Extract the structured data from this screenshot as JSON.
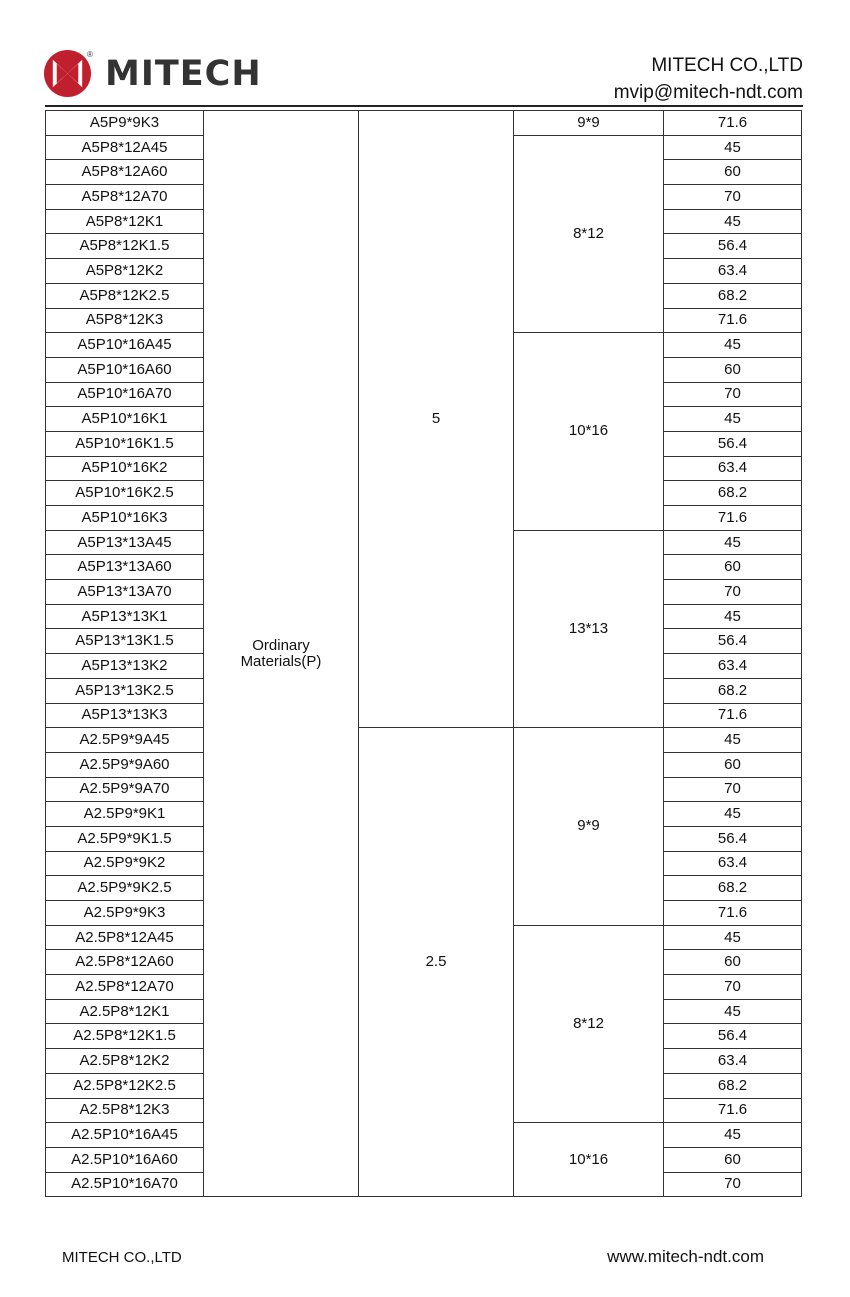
{
  "header": {
    "brand": "MITECH",
    "company": "MITECH  CO.,LTD",
    "email": "mvip@mitech-ndt.com",
    "registered_mark": "®",
    "logo_color": "#c0202e"
  },
  "table": {
    "material": "Ordinary Materials(P)",
    "frequency_groups": [
      {
        "label": "5",
        "rows": 25
      },
      {
        "label": "2.5",
        "rows": 19
      }
    ],
    "size_groups": [
      {
        "label": "9*9",
        "rows": 1
      },
      {
        "label": "8*12",
        "rows": 8
      },
      {
        "label": "10*16",
        "rows": 8
      },
      {
        "label": "13*13",
        "rows": 8
      },
      {
        "label": "9*9",
        "rows": 8
      },
      {
        "label": "8*12",
        "rows": 8
      },
      {
        "label": "10*16",
        "rows": 3
      }
    ],
    "rows": [
      {
        "model": "A5P9*9K3",
        "angle": "71.6"
      },
      {
        "model": "A5P8*12A45",
        "angle": "45"
      },
      {
        "model": "A5P8*12A60",
        "angle": "60"
      },
      {
        "model": "A5P8*12A70",
        "angle": "70"
      },
      {
        "model": "A5P8*12K1",
        "angle": "45"
      },
      {
        "model": "A5P8*12K1.5",
        "angle": "56.4"
      },
      {
        "model": "A5P8*12K2",
        "angle": "63.4"
      },
      {
        "model": "A5P8*12K2.5",
        "angle": "68.2"
      },
      {
        "model": "A5P8*12K3",
        "angle": "71.6"
      },
      {
        "model": "A5P10*16A45",
        "angle": "45"
      },
      {
        "model": "A5P10*16A60",
        "angle": "60"
      },
      {
        "model": "A5P10*16A70",
        "angle": "70"
      },
      {
        "model": "A5P10*16K1",
        "angle": "45"
      },
      {
        "model": "A5P10*16K1.5",
        "angle": "56.4"
      },
      {
        "model": "A5P10*16K2",
        "angle": "63.4"
      },
      {
        "model": "A5P10*16K2.5",
        "angle": "68.2"
      },
      {
        "model": "A5P10*16K3",
        "angle": "71.6"
      },
      {
        "model": "A5P13*13A45",
        "angle": "45"
      },
      {
        "model": "A5P13*13A60",
        "angle": "60"
      },
      {
        "model": "A5P13*13A70",
        "angle": "70"
      },
      {
        "model": "A5P13*13K1",
        "angle": "45"
      },
      {
        "model": "A5P13*13K1.5",
        "angle": "56.4"
      },
      {
        "model": "A5P13*13K2",
        "angle": "63.4"
      },
      {
        "model": "A5P13*13K2.5",
        "angle": "68.2"
      },
      {
        "model": "A5P13*13K3",
        "angle": "71.6"
      },
      {
        "model": "A2.5P9*9A45",
        "angle": "45"
      },
      {
        "model": "A2.5P9*9A60",
        "angle": "60"
      },
      {
        "model": "A2.5P9*9A70",
        "angle": "70"
      },
      {
        "model": "A2.5P9*9K1",
        "angle": "45"
      },
      {
        "model": "A2.5P9*9K1.5",
        "angle": "56.4"
      },
      {
        "model": "A2.5P9*9K2",
        "angle": "63.4"
      },
      {
        "model": "A2.5P9*9K2.5",
        "angle": "68.2"
      },
      {
        "model": "A2.5P9*9K3",
        "angle": "71.6"
      },
      {
        "model": "A2.5P8*12A45",
        "angle": "45"
      },
      {
        "model": "A2.5P8*12A60",
        "angle": "60"
      },
      {
        "model": "A2.5P8*12A70",
        "angle": "70"
      },
      {
        "model": "A2.5P8*12K1",
        "angle": "45"
      },
      {
        "model": "A2.5P8*12K1.5",
        "angle": "56.4"
      },
      {
        "model": "A2.5P8*12K2",
        "angle": "63.4"
      },
      {
        "model": "A2.5P8*12K2.5",
        "angle": "68.2"
      },
      {
        "model": "A2.5P8*12K3",
        "angle": "71.6"
      },
      {
        "model": "A2.5P10*16A45",
        "angle": "45"
      },
      {
        "model": "A2.5P10*16A60",
        "angle": "60"
      },
      {
        "model": "A2.5P10*16A70",
        "angle": "70"
      }
    ]
  },
  "footer": {
    "company": "MITECH CO.,LTD",
    "website": "www.mitech-ndt.com"
  }
}
